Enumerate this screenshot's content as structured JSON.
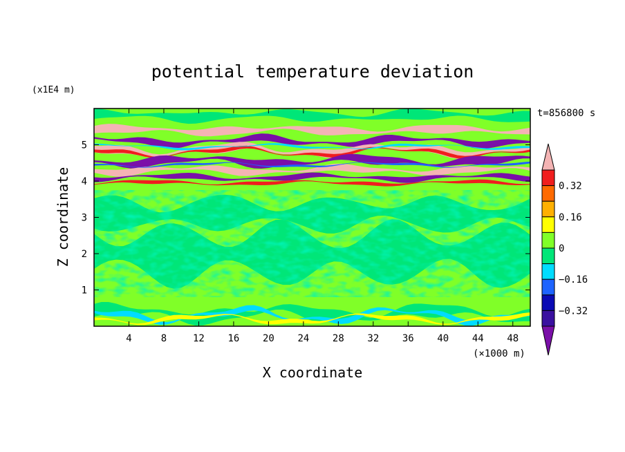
{
  "chart_data": {
    "type": "heatmap",
    "title": "potential temperature deviation",
    "xlabel": "X coordinate",
    "ylabel": "Z coordinate",
    "x_unit": "(×1000 m)",
    "y_unit": "(x1E4 m)",
    "time_label": "t=856800 s",
    "xlim": [
      0,
      50
    ],
    "ylim": [
      0,
      6
    ],
    "xticks": [
      4,
      8,
      12,
      16,
      20,
      24,
      28,
      32,
      36,
      40,
      44,
      48
    ],
    "yticks": [
      1,
      2,
      3,
      4,
      5
    ],
    "colorbar": {
      "levels": [
        -0.48,
        -0.4,
        -0.32,
        -0.24,
        -0.16,
        -0.08,
        0,
        0.08,
        0.16,
        0.24,
        0.32,
        0.4,
        0.48
      ],
      "labels": [
        0.32,
        0.16,
        0,
        -0.16,
        -0.32
      ],
      "colors": [
        "#7a0fa8",
        "#3a10a0",
        "#0a0ab4",
        "#1e64ff",
        "#00dcff",
        "#00e678",
        "#80ff28",
        "#ffff00",
        "#ffb000",
        "#ff6a00",
        "#f01e1e",
        "#f4b4b4"
      ]
    },
    "layers": [
      {
        "z": [
          0,
          0.8
        ],
        "description_pattern": "low-level waves"
      },
      {
        "z": [
          0.8,
          3.8
        ],
        "description_pattern": "neutral"
      },
      {
        "z": [
          3.8,
          5.6
        ],
        "description_pattern": "strong stratified bands"
      },
      {
        "z": [
          5.6,
          6
        ],
        "description_pattern": "upper neutral"
      }
    ]
  }
}
